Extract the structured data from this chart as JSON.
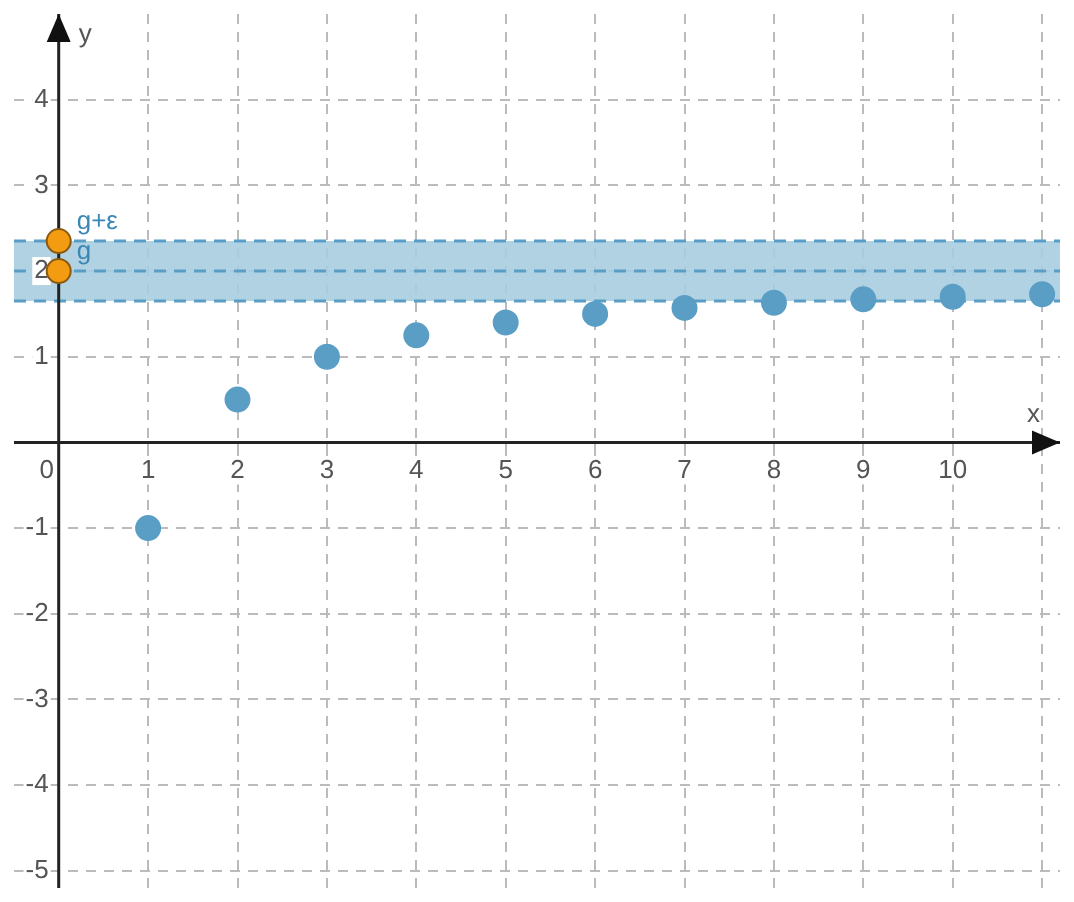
{
  "chart_data": {
    "type": "scatter",
    "xlabel": "x",
    "ylabel": "y",
    "xlim": [
      -0.5,
      11.2
    ],
    "ylim": [
      -5.2,
      5
    ],
    "xticks": [
      0,
      1,
      2,
      3,
      4,
      5,
      6,
      7,
      8,
      9,
      10,
      {
        "value": 11,
        "label": null
      }
    ],
    "yticks": [
      -5,
      -4,
      -3,
      -2,
      -1,
      1,
      2,
      3,
      4
    ],
    "series": [
      {
        "color": "#5a9ec5",
        "x": [
          1,
          2,
          3,
          4,
          5,
          6,
          7,
          8,
          9,
          10,
          11
        ],
        "values": [
          -1,
          0.5,
          1,
          1.25,
          1.4,
          1.5,
          1.57,
          1.63,
          1.67,
          1.7,
          1.73
        ]
      },
      {
        "color": "#f39c12",
        "x": [
          0,
          0
        ],
        "values": [
          2,
          2.35
        ]
      }
    ],
    "bands": [
      {
        "axis": "y",
        "from": 1.65,
        "to": 2.35,
        "color": "#a9cde0"
      }
    ],
    "ref_lines": [
      {
        "axis": "y",
        "value": 2,
        "color": "#5a9ec5",
        "line_style": "dashed"
      },
      {
        "axis": "y",
        "value": 1.65,
        "color": "#5a9ec5",
        "line_style": "dashed"
      },
      {
        "axis": "y",
        "value": 2.35,
        "color": "#5a9ec5",
        "line_style": "dashed"
      }
    ],
    "annotations": [
      {
        "text": "g+ε",
        "x": 0,
        "y": 2.35
      },
      {
        "text": "g",
        "x": 0,
        "y": 2
      }
    ],
    "grid": true,
    "legend": false,
    "marker": "circle"
  }
}
